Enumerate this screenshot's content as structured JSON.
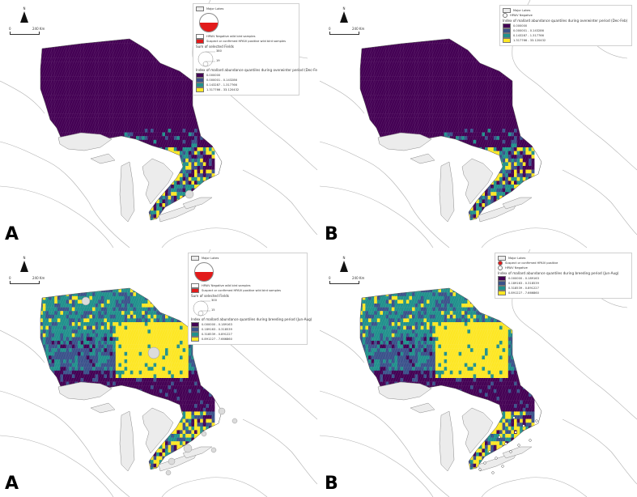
{
  "colors": {
    "class0": "#440154",
    "class1": "#3b528b",
    "class2": "#21918c",
    "class3": "#fde725",
    "lake": "#ececec",
    "land_outline": "#9a9a9a",
    "positive": "#e21a1a"
  },
  "common": {
    "north": "N",
    "scale_zero": "0",
    "scale_km": "240 Km"
  },
  "panels": [
    {
      "letter": "A",
      "season": "winter",
      "legend": {
        "major_lakes": "Major Lakes",
        "negative": "HPAIV Negative wild bird samples",
        "positive": "Suspect or confirmed HPAIV positive wild bird samples",
        "sum_title": "Sum of selected Fields",
        "size_large": "380",
        "size_small": "19",
        "index_title": "Index of mallard abundance quantiles during overwinter period (Dec-Feb)",
        "classes": [
          "0.000000",
          "0.000001 - 0.143286",
          "0.143287 - 1.317766",
          "1.317766 - 33.120432"
        ]
      }
    },
    {
      "letter": "B",
      "season": "winter",
      "legend": {
        "major_lakes": "Major Lakes",
        "negative": "HPAIV Negative",
        "index_title": "Index of mallard abundance quantiles during overwinter period (Dec-Feb)",
        "classes": [
          "0.000000",
          "0.000001 - 0.143286",
          "0.143287 - 1.317766",
          "1.317766 - 33.120432"
        ]
      }
    },
    {
      "letter": "A",
      "season": "breeding",
      "legend": {
        "major_lakes": "Major Lakes",
        "negative": "HPAIV Negative wild bird samples",
        "positive": "Suspect or confirmed HPAIV positive wild bird samples",
        "sum_title": "Sum of selected Fields",
        "size_large": "300",
        "size_small": "15",
        "index_title": "Index of mallard abundance quantiles during breeding period (Jun-Aug)",
        "classes": [
          "0.000000 - 0.189163",
          "0.189163 - 0.318539",
          "0.318539 - 0.891227",
          "0.891227 - 7.666860"
        ]
      }
    },
    {
      "letter": "B",
      "season": "breeding",
      "legend": {
        "major_lakes": "Major Lakes",
        "positive": "Suspect or confirmed HPAIV positive",
        "negative": "HPAIV Negative",
        "index_title": "Index of mallard abundance quantiles during breeding period (Jun-Aug)",
        "classes": [
          "0.000000 - 0.189163",
          "0.189163 - 0.318539",
          "0.318539 - 0.891227",
          "0.891227 - 7.666860"
        ]
      }
    }
  ]
}
